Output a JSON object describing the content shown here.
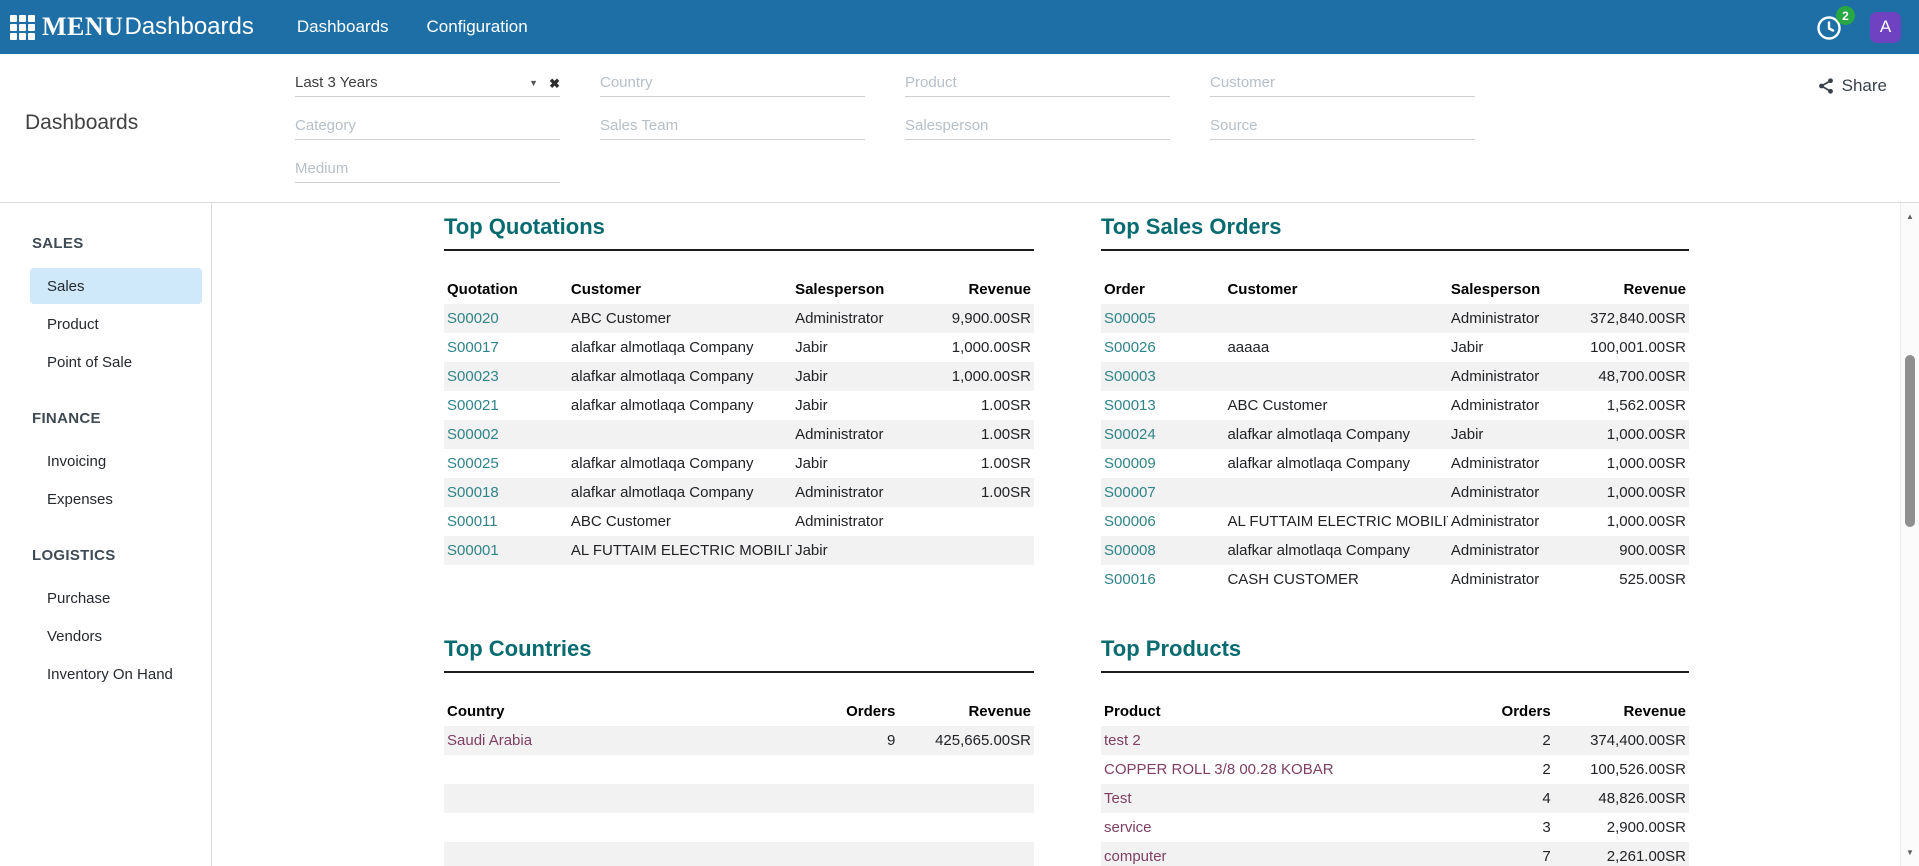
{
  "navbar": {
    "brand_menu": "MENU",
    "brand_app": "Dashboards",
    "items": [
      "Dashboards",
      "Configuration"
    ],
    "activity_badge": "2",
    "avatar_initial": "A"
  },
  "header": {
    "page_title": "Dashboards",
    "share_label": "Share",
    "filters": [
      {
        "type": "select",
        "name": "date-range",
        "value": "Last 3 Years"
      },
      {
        "type": "input",
        "name": "country",
        "placeholder": "Country"
      },
      {
        "type": "input",
        "name": "product",
        "placeholder": "Product"
      },
      {
        "type": "input",
        "name": "customer",
        "placeholder": "Customer"
      },
      {
        "type": "input",
        "name": "category",
        "placeholder": "Category"
      },
      {
        "type": "input",
        "name": "sales-team",
        "placeholder": "Sales Team"
      },
      {
        "type": "input",
        "name": "salesperson",
        "placeholder": "Salesperson"
      },
      {
        "type": "input",
        "name": "source",
        "placeholder": "Source"
      },
      {
        "type": "input",
        "name": "medium",
        "placeholder": "Medium"
      }
    ]
  },
  "sidebar": {
    "sections": [
      {
        "title": "SALES",
        "items": [
          {
            "label": "Sales",
            "active": true
          },
          {
            "label": "Product"
          },
          {
            "label": "Point of Sale"
          }
        ]
      },
      {
        "title": "FINANCE",
        "items": [
          {
            "label": "Invoicing"
          },
          {
            "label": "Expenses"
          }
        ]
      },
      {
        "title": "LOGISTICS",
        "items": [
          {
            "label": "Purchase"
          },
          {
            "label": "Vendors"
          },
          {
            "label": "Inventory On Hand"
          }
        ]
      }
    ]
  },
  "tables": [
    {
      "id": "top-quotations",
      "title": "Top Quotations",
      "link_style": "teal",
      "columns": [
        {
          "label": "Quotation"
        },
        {
          "label": "Customer"
        },
        {
          "label": "Salesperson"
        },
        {
          "label": "Revenue",
          "align": "right"
        }
      ],
      "rows": [
        [
          "S00020",
          "ABC Customer",
          "Administrator",
          "9,900.00SR"
        ],
        [
          "S00017",
          "alafkar almotlaqa Company",
          "Jabir",
          "1,000.00SR"
        ],
        [
          "S00023",
          "alafkar almotlaqa Company",
          "Jabir",
          "1,000.00SR"
        ],
        [
          "S00021",
          "alafkar almotlaqa Company",
          "Jabir",
          "1.00SR"
        ],
        [
          "S00002",
          "",
          "Administrator",
          "1.00SR"
        ],
        [
          "S00025",
          "alafkar almotlaqa Company",
          "Jabir",
          "1.00SR"
        ],
        [
          "S00018",
          "alafkar almotlaqa Company",
          "Administrator",
          "1.00SR"
        ],
        [
          "S00011",
          "ABC Customer",
          "Administrator",
          ""
        ],
        [
          "S00001",
          "AL FUTTAIM ELECTRIC MOBILITY",
          "Jabir",
          ""
        ]
      ]
    },
    {
      "id": "top-sales-orders",
      "title": "Top Sales Orders",
      "link_style": "teal",
      "columns": [
        {
          "label": "Order"
        },
        {
          "label": "Customer"
        },
        {
          "label": "Salesperson"
        },
        {
          "label": "Revenue",
          "align": "right"
        }
      ],
      "rows": [
        [
          "S00005",
          "",
          "Administrator",
          "372,840.00SR"
        ],
        [
          "S00026",
          "aaaaa",
          "Jabir",
          "100,001.00SR"
        ],
        [
          "S00003",
          "",
          "Administrator",
          "48,700.00SR"
        ],
        [
          "S00013",
          "ABC Customer",
          "Administrator",
          "1,562.00SR"
        ],
        [
          "S00024",
          "alafkar almotlaqa Company",
          "Jabir",
          "1,000.00SR"
        ],
        [
          "S00009",
          "alafkar almotlaqa Company",
          "Administrator",
          "1,000.00SR"
        ],
        [
          "S00007",
          "",
          "Administrator",
          "1,000.00SR"
        ],
        [
          "S00006",
          "AL FUTTAIM ELECTRIC MOBILITY",
          "Administrator",
          "1,000.00SR"
        ],
        [
          "S00008",
          "alafkar almotlaqa Company",
          "Administrator",
          "900.00SR"
        ],
        [
          "S00016",
          "CASH CUSTOMER",
          "Administrator",
          "525.00SR"
        ]
      ]
    },
    {
      "id": "top-countries",
      "title": "Top Countries",
      "link_style": "maroon",
      "columns": [
        {
          "label": "Country"
        },
        {
          "label": "Orders",
          "align": "right"
        },
        {
          "label": "Revenue",
          "align": "right"
        }
      ],
      "rows": [
        [
          "Saudi Arabia",
          "9",
          "425,665.00SR"
        ],
        [
          "",
          "",
          ""
        ],
        [
          "",
          "",
          ""
        ],
        [
          "",
          "",
          ""
        ],
        [
          "",
          "",
          ""
        ]
      ]
    },
    {
      "id": "top-products",
      "title": "Top Products",
      "link_style": "maroon",
      "columns": [
        {
          "label": "Product"
        },
        {
          "label": "Orders",
          "align": "right"
        },
        {
          "label": "Revenue",
          "align": "right"
        }
      ],
      "rows": [
        [
          "test 2",
          "2",
          "374,400.00SR"
        ],
        [
          "COPPER ROLL 3/8 00.28 KOBAR",
          "2",
          "100,526.00SR"
        ],
        [
          "Test",
          "4",
          "48,826.00SR"
        ],
        [
          "service",
          "3",
          "2,900.00SR"
        ],
        [
          "computer",
          "7",
          "2,261.00SR"
        ]
      ]
    }
  ],
  "colors": {
    "navbar_bg": "#1d6fa5",
    "badge_green": "#28a745",
    "avatar_purple": "#6f42c1",
    "heading_teal": "#076b6f",
    "link_teal": "#2f8489",
    "link_maroon": "#7e3f63",
    "row_stripe": "#f2f2f2",
    "sidebar_active_bg": "#cfe8fa"
  }
}
